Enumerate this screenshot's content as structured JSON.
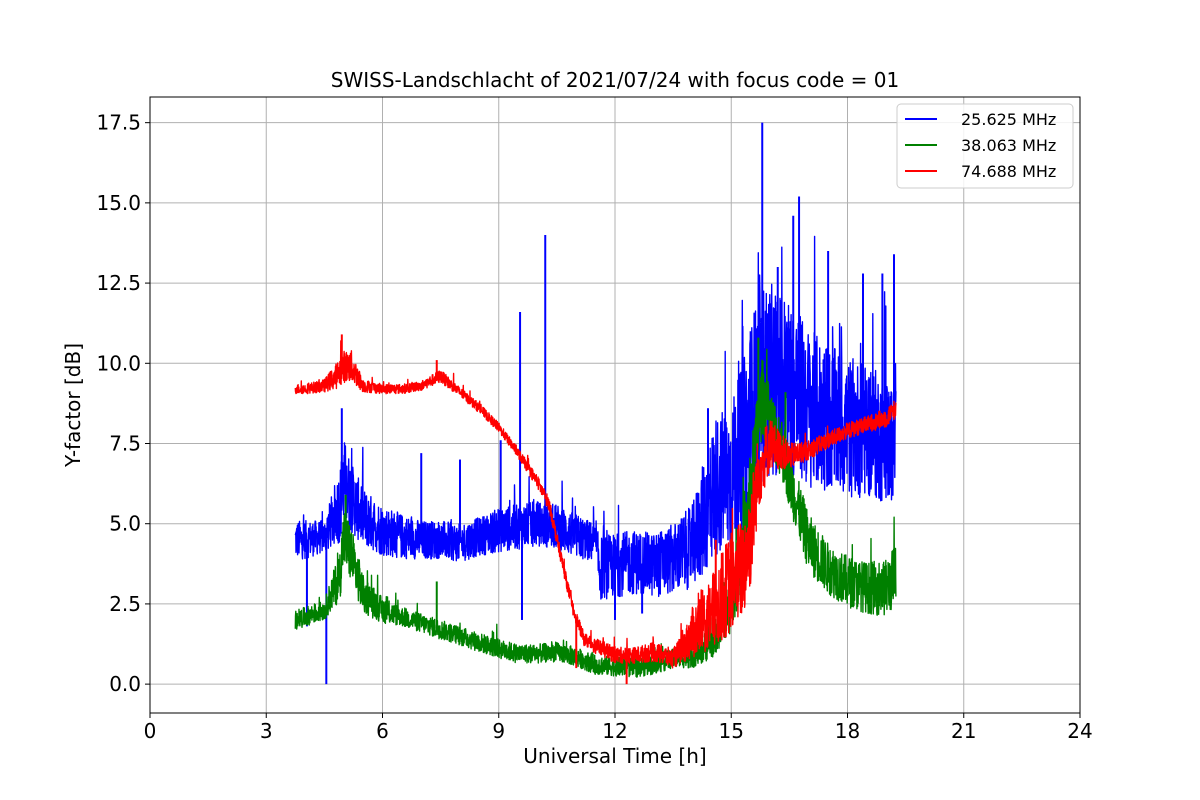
{
  "chart_data": {
    "type": "line",
    "title": "SWISS-Landschlacht of 2021/07/24 with focus code = 01",
    "xlabel": "Universal Time [h]",
    "ylabel": "Y-factor [dB]",
    "xlim": [
      0,
      24
    ],
    "ylim": [
      -0.9,
      18.3
    ],
    "xticks": [
      0,
      3,
      6,
      9,
      12,
      15,
      18,
      21,
      24
    ],
    "xtick_labels": [
      "0",
      "3",
      "6",
      "9",
      "12",
      "15",
      "18",
      "21",
      "24"
    ],
    "yticks": [
      0,
      2.5,
      5,
      7.5,
      10,
      12.5,
      15,
      17.5
    ],
    "ytick_labels": [
      "0.0",
      "2.5",
      "5.0",
      "7.5",
      "10.0",
      "12.5",
      "15.0",
      "17.5"
    ],
    "grid": true,
    "legend_position": "top-right",
    "series": [
      {
        "name": "25.625 MHz",
        "color": "#0000ff",
        "x": [
          3.75,
          4.0,
          4.5,
          4.9,
          5.0,
          5.2,
          5.5,
          6.0,
          6.5,
          7.0,
          7.5,
          8.0,
          8.5,
          9.0,
          9.5,
          10.0,
          10.5,
          11.0,
          11.5,
          11.6,
          12.0,
          12.5,
          13.0,
          13.5,
          14.0,
          14.3,
          14.6,
          15.0,
          15.3,
          15.6,
          15.8,
          16.0,
          16.5,
          17.0,
          17.5,
          18.0,
          18.5,
          19.0,
          19.25
        ],
        "y": [
          4.5,
          4.5,
          4.6,
          5.6,
          6.3,
          5.8,
          5.2,
          4.8,
          4.6,
          4.5,
          4.5,
          4.4,
          4.6,
          4.8,
          4.9,
          5.0,
          4.9,
          4.6,
          4.4,
          3.6,
          3.7,
          3.8,
          3.7,
          3.9,
          4.3,
          5.2,
          6.2,
          6.4,
          7.2,
          8.6,
          9.3,
          9.5,
          9.3,
          8.6,
          8.3,
          8.0,
          7.9,
          7.6,
          7.4
        ],
        "noise_band": [
          0.6,
          0.6,
          0.5,
          1.2,
          1.4,
          1.1,
          0.9,
          0.8,
          0.7,
          0.6,
          0.6,
          0.6,
          0.6,
          0.7,
          0.7,
          0.7,
          0.7,
          0.7,
          0.6,
          1.0,
          1.0,
          1.0,
          1.0,
          1.1,
          1.3,
          1.8,
          2.2,
          2.4,
          2.8,
          3.2,
          3.2,
          3.0,
          2.8,
          2.5,
          2.3,
          2.2,
          2.1,
          2.0,
          1.8
        ],
        "spikes": [
          [
            4.05,
            1.8
          ],
          [
            4.55,
            0.0
          ],
          [
            4.95,
            8.6
          ],
          [
            7.0,
            7.2
          ],
          [
            8.0,
            7.0
          ],
          [
            9.05,
            7.6
          ],
          [
            9.55,
            11.6
          ],
          [
            9.6,
            2.0
          ],
          [
            10.2,
            14.0
          ],
          [
            12.0,
            2.0
          ],
          [
            12.7,
            2.2
          ],
          [
            14.4,
            8.6
          ],
          [
            15.5,
            11.0
          ],
          [
            15.8,
            17.5
          ],
          [
            16.2,
            13.0
          ],
          [
            16.6,
            14.6
          ],
          [
            16.75,
            15.2
          ],
          [
            17.5,
            13.5
          ],
          [
            18.4,
            12.8
          ],
          [
            18.9,
            12.8
          ],
          [
            19.2,
            13.4
          ]
        ]
      },
      {
        "name": "38.063 MHz",
        "color": "#008000",
        "x": [
          3.75,
          4.0,
          4.5,
          4.9,
          5.0,
          5.2,
          5.5,
          6.0,
          6.5,
          7.0,
          7.5,
          8.0,
          8.5,
          9.0,
          9.5,
          10.0,
          10.5,
          11.0,
          11.5,
          12.0,
          12.5,
          13.0,
          13.5,
          14.0,
          14.5,
          15.0,
          15.3,
          15.6,
          15.8,
          16.0,
          16.3,
          16.6,
          17.0,
          17.5,
          18.0,
          18.5,
          19.0,
          19.25
        ],
        "y": [
          2.0,
          2.1,
          2.3,
          3.4,
          4.6,
          4.0,
          2.8,
          2.3,
          2.1,
          1.9,
          1.7,
          1.5,
          1.3,
          1.1,
          0.95,
          0.95,
          1.0,
          0.85,
          0.6,
          0.55,
          0.5,
          0.6,
          0.8,
          0.9,
          1.3,
          2.4,
          4.0,
          7.2,
          9.0,
          8.2,
          7.4,
          6.0,
          4.4,
          3.6,
          3.2,
          3.0,
          3.0,
          3.4
        ],
        "noise_band": [
          0.3,
          0.3,
          0.3,
          0.8,
          1.0,
          0.9,
          0.6,
          0.4,
          0.3,
          0.3,
          0.3,
          0.3,
          0.3,
          0.3,
          0.3,
          0.3,
          0.3,
          0.3,
          0.3,
          0.3,
          0.3,
          0.3,
          0.3,
          0.4,
          0.5,
          0.8,
          1.0,
          1.2,
          1.2,
          1.0,
          1.0,
          0.9,
          0.9,
          0.8,
          0.8,
          0.8,
          0.9,
          1.0
        ],
        "spikes": [
          [
            5.05,
            5.9
          ],
          [
            7.4,
            3.2
          ],
          [
            15.7,
            10.8
          ],
          [
            16.4,
            9.1
          ]
        ]
      },
      {
        "name": "74.688 MHz",
        "color": "#ff0000",
        "x": [
          3.75,
          4.0,
          4.5,
          4.8,
          5.0,
          5.2,
          5.5,
          6.0,
          6.5,
          7.0,
          7.5,
          8.0,
          8.5,
          9.0,
          9.5,
          10.0,
          10.3,
          10.6,
          10.9,
          11.2,
          11.5,
          12.0,
          12.5,
          13.0,
          13.5,
          13.8,
          14.0,
          14.5,
          15.0,
          15.3,
          15.5,
          15.7,
          16.0,
          16.5,
          17.0,
          17.5,
          18.0,
          18.5,
          19.0,
          19.25
        ],
        "y": [
          9.2,
          9.2,
          9.3,
          9.6,
          9.9,
          9.9,
          9.3,
          9.2,
          9.2,
          9.3,
          9.6,
          9.1,
          8.6,
          8.0,
          7.2,
          6.3,
          5.6,
          4.0,
          2.4,
          1.4,
          1.2,
          0.9,
          0.9,
          1.0,
          0.8,
          1.2,
          1.6,
          2.2,
          3.2,
          3.6,
          4.6,
          6.6,
          7.5,
          7.1,
          7.3,
          7.6,
          7.9,
          8.1,
          8.3,
          8.6
        ],
        "noise_band": [
          0.15,
          0.15,
          0.2,
          0.4,
          0.5,
          0.5,
          0.2,
          0.15,
          0.15,
          0.15,
          0.2,
          0.15,
          0.15,
          0.15,
          0.15,
          0.2,
          0.2,
          0.2,
          0.2,
          0.2,
          0.25,
          0.25,
          0.25,
          0.3,
          0.3,
          0.5,
          0.8,
          1.2,
          1.6,
          1.6,
          1.6,
          1.2,
          0.8,
          0.4,
          0.3,
          0.25,
          0.25,
          0.25,
          0.3,
          0.3
        ],
        "spikes": [
          [
            4.95,
            10.9
          ],
          [
            7.4,
            10.1
          ],
          [
            11.0,
            0.5
          ],
          [
            12.3,
            0.0
          ],
          [
            14.6,
            4.5
          ],
          [
            15.3,
            4.8
          ]
        ]
      }
    ]
  }
}
